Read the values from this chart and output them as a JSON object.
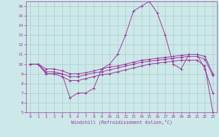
{
  "xlabel": "Windchill (Refroidissement éolien,°C)",
  "background_color": "#cce8e8",
  "line_color": "#993399",
  "grid_color": "#aacccc",
  "xlim": [
    -0.5,
    23.5
  ],
  "ylim": [
    5,
    16.5
  ],
  "xticks": [
    0,
    1,
    2,
    3,
    4,
    5,
    6,
    7,
    8,
    9,
    10,
    11,
    12,
    13,
    14,
    15,
    16,
    17,
    18,
    19,
    20,
    21,
    22,
    23
  ],
  "yticks": [
    5,
    6,
    7,
    8,
    9,
    10,
    11,
    12,
    13,
    14,
    15,
    16
  ],
  "line1_x": [
    0,
    1,
    2,
    3,
    4,
    5,
    6,
    7,
    8,
    9,
    10,
    11,
    12,
    13,
    14,
    15,
    16,
    17,
    18,
    19,
    20,
    21,
    22,
    23
  ],
  "line1_y": [
    10,
    10,
    9,
    9,
    9,
    6.5,
    7,
    7,
    7.5,
    9.5,
    10,
    11,
    13,
    15.5,
    16,
    16.5,
    15.3,
    13,
    10,
    9.5,
    11,
    11,
    9.5,
    7
  ],
  "line2_x": [
    0,
    1,
    2,
    3,
    4,
    5,
    6,
    7,
    8,
    9,
    10,
    11,
    12,
    13,
    14,
    15,
    16,
    17,
    18,
    19,
    20,
    21,
    22,
    23
  ],
  "line2_y": [
    10,
    10,
    9.5,
    9.5,
    9.3,
    9.0,
    9.0,
    9.1,
    9.3,
    9.5,
    9.7,
    9.8,
    10.0,
    10.2,
    10.4,
    10.5,
    10.6,
    10.7,
    10.8,
    10.9,
    11.0,
    11.0,
    10.8,
    9.0
  ],
  "line3_x": [
    0,
    1,
    2,
    3,
    4,
    5,
    6,
    7,
    8,
    9,
    10,
    11,
    12,
    13,
    14,
    15,
    16,
    17,
    18,
    19,
    20,
    21,
    22,
    23
  ],
  "line3_y": [
    10,
    10,
    9.2,
    9.2,
    9.0,
    8.7,
    8.7,
    8.9,
    9.1,
    9.2,
    9.4,
    9.6,
    9.8,
    10.0,
    10.2,
    10.3,
    10.4,
    10.5,
    10.6,
    10.7,
    10.8,
    10.8,
    10.5,
    8.8
  ],
  "line4_x": [
    0,
    1,
    2,
    3,
    4,
    5,
    6,
    7,
    8,
    9,
    10,
    11,
    12,
    13,
    14,
    15,
    16,
    17,
    18,
    19,
    20,
    21,
    22,
    23
  ],
  "line4_y": [
    10,
    10,
    9.0,
    9.0,
    8.7,
    8.3,
    8.3,
    8.5,
    8.7,
    8.9,
    9.0,
    9.2,
    9.4,
    9.6,
    9.8,
    10.0,
    10.1,
    10.2,
    10.3,
    10.4,
    10.4,
    10.4,
    9.8,
    5.0
  ]
}
